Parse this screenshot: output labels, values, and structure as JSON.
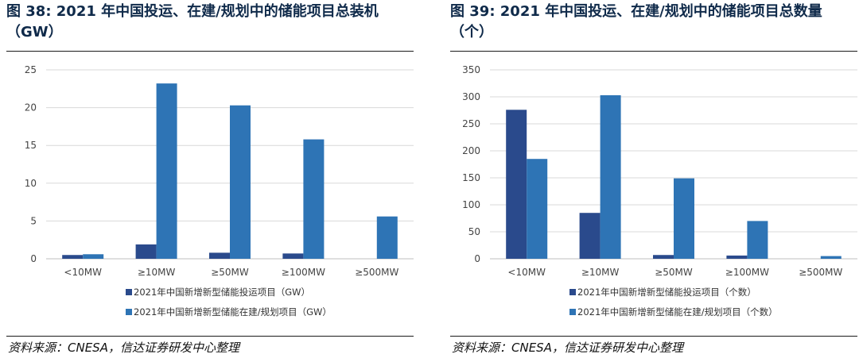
{
  "charts": [
    {
      "title_line1": "图 38: 2021 年中国投运、在建/规划中的储能项目总装机",
      "title_line2": "（GW）",
      "source": "资料来源：CNESA，信达证券研发中心整理"
    },
    {
      "title_line1": "图 39: 2021 年中国投运、在建/规划中的储能项目总数量",
      "title_line2": "（个）",
      "source": "资料来源：CNESA，信达证券研发中心整理"
    }
  ],
  "colors": {
    "series1": "#2a4a8c",
    "series2": "#2e74b5",
    "grid": "#d9d9d9",
    "axis": "#bfbfbf"
  },
  "chart_data": [
    {
      "type": "bar",
      "title": "2021 年中国投运、在建/规划中的储能项目总装机（GW）",
      "categories": [
        "<10MW",
        "≥10MW",
        "≥50MW",
        "≥100MW",
        "≥500MW"
      ],
      "series": [
        {
          "name": "2021年中国新增新型储能投运项目（GW）",
          "values": [
            0.5,
            1.9,
            0.8,
            0.7,
            0
          ]
        },
        {
          "name": "2021年中国新增新型储能在建/规划项目（GW）",
          "values": [
            0.6,
            23.2,
            20.3,
            15.8,
            5.6
          ]
        }
      ],
      "yticks": [
        0,
        5,
        10,
        15,
        20,
        25
      ],
      "ylim": [
        0,
        25
      ],
      "grid": true,
      "legend": "bottom"
    },
    {
      "type": "bar",
      "title": "2021 年中国投运、在建/规划中的储能项目总数量（个）",
      "categories": [
        "<10MW",
        "≥10MW",
        "≥50MW",
        "≥100MW",
        "≥500MW"
      ],
      "series": [
        {
          "name": "2021年中国新增新型储能投运项目（个数）",
          "values": [
            276,
            85,
            7,
            6,
            0
          ]
        },
        {
          "name": "2021年中国新增新型储能在建/规划项目（个数）",
          "values": [
            185,
            303,
            149,
            70,
            5
          ]
        }
      ],
      "yticks": [
        0,
        50,
        100,
        150,
        200,
        250,
        300,
        350
      ],
      "ylim": [
        0,
        350
      ],
      "grid": true,
      "legend": "bottom"
    }
  ]
}
